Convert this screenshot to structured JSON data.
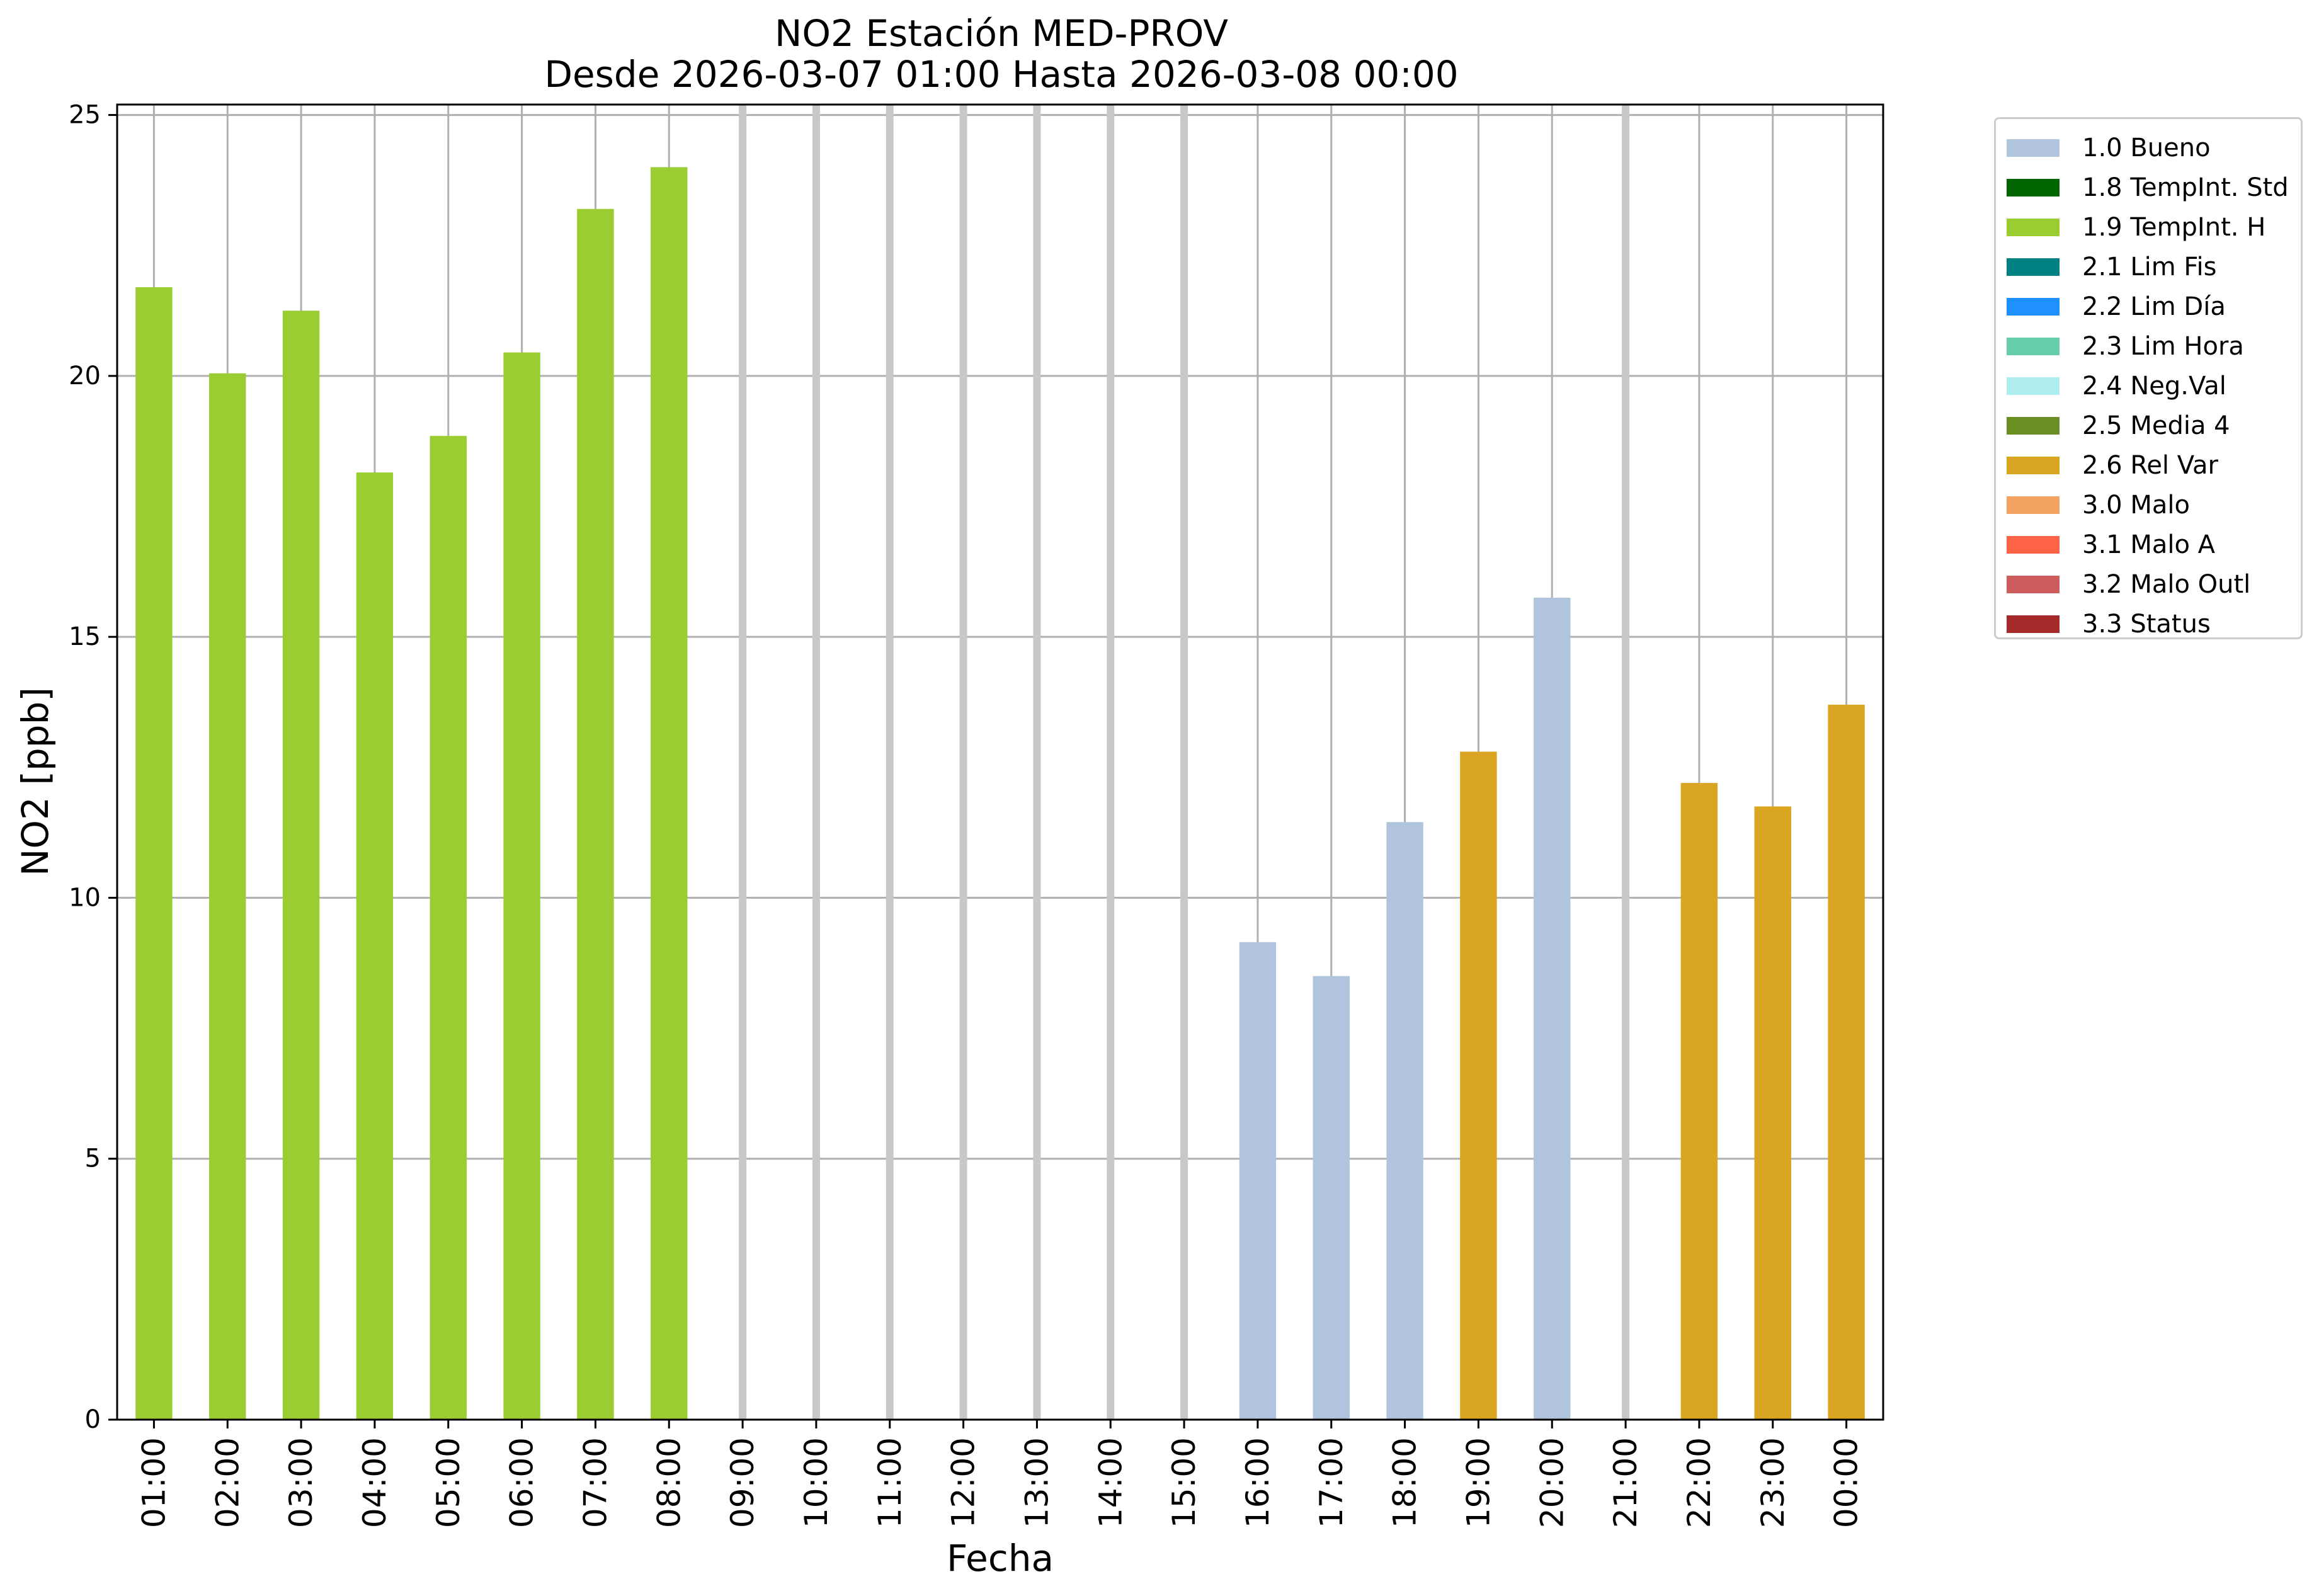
{
  "chart_data": {
    "type": "bar",
    "title": "NO2 Estación MED-PROV",
    "subtitle": "Desde 2026-03-07 01:00 Hasta 2026-03-08 00:00",
    "xlabel": "Fecha",
    "ylabel": "NO2 [ppb]",
    "ylim": [
      0,
      25.2
    ],
    "yticks": [
      "0",
      "5",
      "10",
      "15",
      "20",
      "25"
    ],
    "grid": true,
    "legend_position": "outside right",
    "categories": [
      "01:00",
      "02:00",
      "03:00",
      "04:00",
      "05:00",
      "06:00",
      "07:00",
      "08:00",
      "09:00",
      "10:00",
      "11:00",
      "12:00",
      "13:00",
      "14:00",
      "15:00",
      "16:00",
      "17:00",
      "18:00",
      "19:00",
      "20:00",
      "21:00",
      "22:00",
      "23:00",
      "00:00"
    ],
    "values": [
      21.7,
      20.05,
      21.25,
      18.15,
      18.85,
      20.45,
      23.2,
      24.0,
      null,
      null,
      null,
      null,
      null,
      null,
      null,
      9.15,
      8.5,
      11.45,
      12.8,
      15.75,
      null,
      12.2,
      11.75,
      13.7
    ],
    "flags": [
      "1.9",
      "1.9",
      "1.9",
      "1.9",
      "1.9",
      "1.9",
      "1.9",
      "1.9",
      null,
      null,
      null,
      null,
      null,
      null,
      null,
      "1.0",
      "1.0",
      "1.0",
      "2.6",
      "1.0",
      null,
      "2.6",
      "2.6",
      "2.6"
    ],
    "legend": [
      {
        "code": "1.0",
        "label": "1.0 Bueno",
        "color": "#b0c4de"
      },
      {
        "code": "1.8",
        "label": "1.8 TempInt. Std",
        "color": "#006400"
      },
      {
        "code": "1.9",
        "label": "1.9 TempInt. H",
        "color": "#9acd32"
      },
      {
        "code": "2.1",
        "label": "2.1 Lim Fis",
        "color": "#008080"
      },
      {
        "code": "2.2",
        "label": "2.2 Lim Día",
        "color": "#1e90ff"
      },
      {
        "code": "2.3",
        "label": "2.3 Lim Hora",
        "color": "#66cdaa"
      },
      {
        "code": "2.4",
        "label": "2.4 Neg.Val",
        "color": "#afeeee"
      },
      {
        "code": "2.5",
        "label": "2.5 Media 4",
        "color": "#6b8e23"
      },
      {
        "code": "2.6",
        "label": "2.6 Rel Var",
        "color": "#daa520"
      },
      {
        "code": "3.0",
        "label": "3.0 Malo",
        "color": "#f4a460"
      },
      {
        "code": "3.1",
        "label": "3.1 Malo A",
        "color": "#ff6347"
      },
      {
        "code": "3.2",
        "label": "3.2 Malo Outl",
        "color": "#cd5c5c"
      },
      {
        "code": "3.3",
        "label": "3.3 Status",
        "color": "#a52a2a"
      }
    ],
    "colors": {
      "grid": "#b0b0b0",
      "missing_marker": "#c8c8c8",
      "axis": "#000000"
    }
  }
}
